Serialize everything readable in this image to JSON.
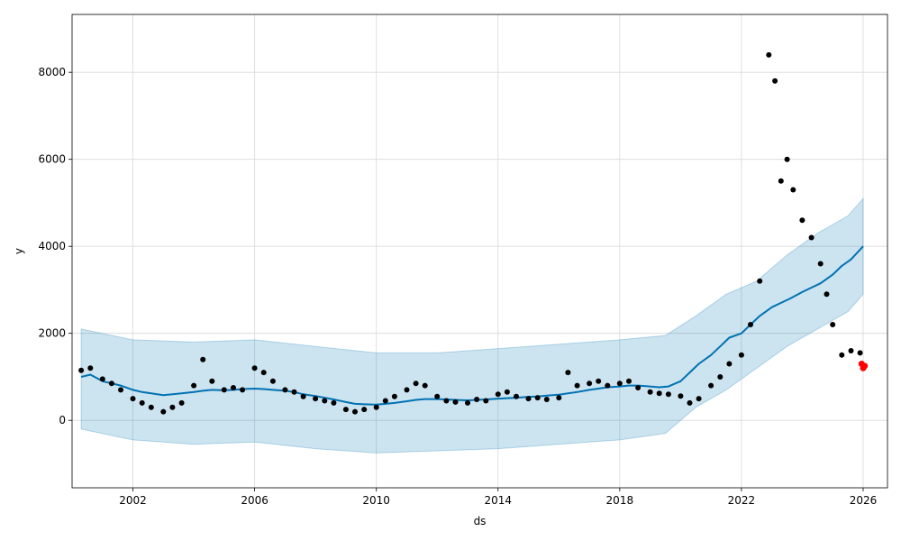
{
  "chart_data": {
    "type": "scatter",
    "title": "",
    "xlabel": "ds",
    "ylabel": "y",
    "xlim": [
      2000.0,
      2026.8
    ],
    "ylim": [
      -1550,
      9330
    ],
    "grid": true,
    "x_ticks": [
      {
        "value": 2002,
        "label": "2002"
      },
      {
        "value": 2006,
        "label": "2006"
      },
      {
        "value": 2010,
        "label": "2010"
      },
      {
        "value": 2014,
        "label": "2014"
      },
      {
        "value": 2018,
        "label": "2018"
      },
      {
        "value": 2022,
        "label": "2022"
      },
      {
        "value": 2026,
        "label": "2026"
      }
    ],
    "y_ticks": [
      {
        "value": 0,
        "label": "0"
      },
      {
        "value": 2000,
        "label": "2000"
      },
      {
        "value": 4000,
        "label": "4000"
      },
      {
        "value": 6000,
        "label": "6000"
      },
      {
        "value": 8000,
        "label": "8000"
      }
    ],
    "colors": {
      "observed": "#000000",
      "forecast_line": "#0072B2",
      "band": "#0072B2",
      "holdout": "#ff0000",
      "grid": "#d9d9d9"
    },
    "series": [
      {
        "role": "observed",
        "kind": "points",
        "x": [
          2000.3,
          2000.6,
          2001.0,
          2001.3,
          2001.6,
          2002.0,
          2002.3,
          2002.6,
          2003.0,
          2003.3,
          2003.6,
          2004.0,
          2004.3,
          2004.6,
          2005.0,
          2005.3,
          2005.6,
          2006.0,
          2006.3,
          2006.6,
          2007.0,
          2007.3,
          2007.6,
          2008.0,
          2008.3,
          2008.6,
          2009.0,
          2009.3,
          2009.6,
          2010.0,
          2010.3,
          2010.6,
          2011.0,
          2011.3,
          2011.6,
          2012.0,
          2012.3,
          2012.6,
          2013.0,
          2013.3,
          2013.6,
          2014.0,
          2014.3,
          2014.6,
          2015.0,
          2015.3,
          2015.6,
          2016.0,
          2016.3,
          2016.6,
          2017.0,
          2017.3,
          2017.6,
          2018.0,
          2018.3,
          2018.6,
          2019.0,
          2019.3,
          2019.6,
          2020.0,
          2020.3,
          2020.6,
          2021.0,
          2021.3,
          2021.6,
          2022.0,
          2022.3,
          2022.6,
          2022.9,
          2023.1,
          2023.3,
          2023.5,
          2023.7,
          2024.0,
          2024.3,
          2024.6,
          2024.8,
          2025.0,
          2025.3,
          2025.6,
          2025.9
        ],
        "y": [
          1150,
          1200,
          950,
          850,
          700,
          500,
          400,
          300,
          200,
          300,
          400,
          800,
          1400,
          900,
          700,
          750,
          700,
          1200,
          1100,
          900,
          700,
          650,
          550,
          500,
          450,
          400,
          250,
          200,
          250,
          300,
          450,
          550,
          700,
          850,
          800,
          550,
          450,
          420,
          400,
          480,
          450,
          600,
          650,
          550,
          500,
          520,
          480,
          520,
          1100,
          800,
          850,
          900,
          800,
          850,
          900,
          750,
          650,
          620,
          600,
          560,
          400,
          500,
          800,
          1000,
          1300,
          1500,
          2200,
          3200,
          8400,
          7800,
          5500,
          6000,
          5300,
          4600,
          4200,
          3600,
          2900,
          2200,
          1500,
          1600,
          1550
        ]
      },
      {
        "role": "forecast",
        "kind": "line",
        "x": [
          2000.3,
          2000.6,
          2001.0,
          2001.3,
          2001.6,
          2002.0,
          2002.3,
          2002.6,
          2003.0,
          2003.3,
          2003.6,
          2004.0,
          2004.3,
          2004.6,
          2005.0,
          2005.3,
          2005.6,
          2006.0,
          2006.3,
          2006.6,
          2007.0,
          2007.3,
          2007.6,
          2008.0,
          2008.3,
          2008.6,
          2009.0,
          2009.3,
          2009.6,
          2010.0,
          2010.3,
          2010.6,
          2011.0,
          2011.3,
          2011.6,
          2012.0,
          2012.3,
          2012.6,
          2013.0,
          2013.3,
          2013.6,
          2014.0,
          2014.3,
          2014.6,
          2015.0,
          2015.3,
          2015.6,
          2016.0,
          2016.3,
          2016.6,
          2017.0,
          2017.3,
          2017.6,
          2018.0,
          2018.3,
          2018.6,
          2019.0,
          2019.3,
          2019.6,
          2020.0,
          2020.3,
          2020.6,
          2021.0,
          2021.3,
          2021.6,
          2022.0,
          2022.3,
          2022.6,
          2023.0,
          2023.3,
          2023.6,
          2024.0,
          2024.3,
          2024.6,
          2025.0,
          2025.3,
          2025.6,
          2026.0
        ],
        "y": [
          1000,
          1050,
          900,
          850,
          800,
          700,
          650,
          620,
          580,
          600,
          620,
          650,
          680,
          700,
          690,
          700,
          720,
          730,
          720,
          700,
          680,
          650,
          600,
          560,
          520,
          480,
          420,
          380,
          370,
          360,
          380,
          400,
          440,
          470,
          490,
          490,
          480,
          470,
          460,
          470,
          480,
          500,
          510,
          520,
          540,
          550,
          570,
          590,
          620,
          650,
          700,
          730,
          760,
          780,
          800,
          800,
          780,
          760,
          780,
          900,
          1100,
          1300,
          1500,
          1700,
          1900,
          2000,
          2200,
          2400,
          2600,
          2700,
          2800,
          2950,
          3050,
          3150,
          3350,
          3550,
          3700,
          4000
        ]
      },
      {
        "role": "holdout",
        "kind": "points",
        "x": [
          2025.95,
          2026.0,
          2026.05
        ],
        "y": [
          1300,
          1200,
          1250
        ]
      }
    ],
    "band": {
      "name": "uncertainty interval",
      "x": [
        2000.3,
        2002.0,
        2004.0,
        2006.0,
        2008.0,
        2010.0,
        2012.0,
        2014.0,
        2016.0,
        2018.0,
        2019.5,
        2020.5,
        2021.5,
        2022.5,
        2023.5,
        2024.5,
        2025.5,
        2026.0
      ],
      "upper": [
        2100,
        1850,
        1800,
        1850,
        1700,
        1550,
        1550,
        1650,
        1750,
        1850,
        1950,
        2400,
        2900,
        3200,
        3800,
        4300,
        4700,
        5100
      ],
      "lower": [
        -200,
        -450,
        -550,
        -500,
        -650,
        -750,
        -700,
        -650,
        -550,
        -450,
        -300,
        300,
        700,
        1200,
        1700,
        2100,
        2500,
        2900
      ]
    }
  }
}
